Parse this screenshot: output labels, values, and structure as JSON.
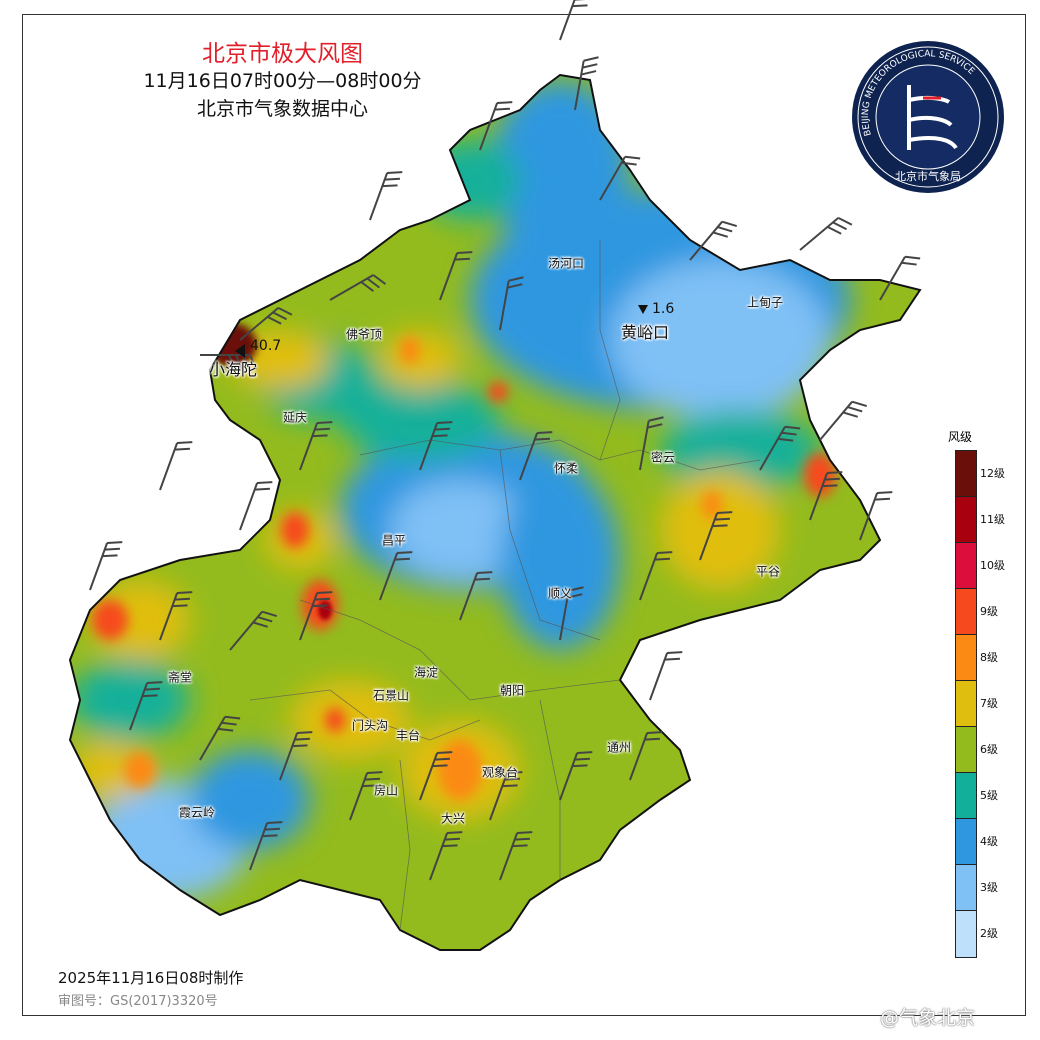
{
  "header": {
    "title": "北京市极大风图",
    "time_range": "11月16日07时00分—08时00分",
    "source": "北京市气象数据中心"
  },
  "logo": {
    "text_ring": "BEIJING METEOROLOGICAL SERVICE",
    "text_cn": "北京市气象局"
  },
  "places": [
    {
      "name": "汤河口"
    },
    {
      "name": "上甸子"
    },
    {
      "name": "黄峪口"
    },
    {
      "name": "佛爷顶"
    },
    {
      "name": "小海陀"
    },
    {
      "name": "延庆"
    },
    {
      "name": "怀柔"
    },
    {
      "name": "密云"
    },
    {
      "name": "昌平"
    },
    {
      "name": "平谷"
    },
    {
      "name": "顺义"
    },
    {
      "name": "海淀"
    },
    {
      "name": "斋堂"
    },
    {
      "name": "朝阳"
    },
    {
      "name": "石景山"
    },
    {
      "name": "门头沟"
    },
    {
      "name": "丰台"
    },
    {
      "name": "通州"
    },
    {
      "name": "观象台"
    },
    {
      "name": "房山"
    },
    {
      "name": "霞云岭"
    },
    {
      "name": "大兴"
    }
  ],
  "extremes": {
    "max": {
      "station": "小海陀",
      "value": "40.7"
    },
    "min": {
      "station": "黄峪口",
      "value": "1.6"
    }
  },
  "legend": {
    "title": "风级",
    "levels": [
      {
        "label": "12级",
        "color": "#6b0f0a"
      },
      {
        "label": "11级",
        "color": "#a8000e"
      },
      {
        "label": "10级",
        "color": "#dc0f3c"
      },
      {
        "label": "9级",
        "color": "#f64a1e"
      },
      {
        "label": "8级",
        "color": "#fb8a14"
      },
      {
        "label": "7级",
        "color": "#e0be10"
      },
      {
        "label": "6级",
        "color": "#93bb1e"
      },
      {
        "label": "5级",
        "color": "#12b09a"
      },
      {
        "label": "4级",
        "color": "#2f97e0"
      },
      {
        "label": "3级",
        "color": "#7fc0f5"
      },
      {
        "label": "2级",
        "color": "#bfe0fb"
      }
    ]
  },
  "footer": {
    "made": "2025年11月16日08时制作",
    "review": "审图号：GS(2017)3320号",
    "watermark": "@气象北京"
  }
}
